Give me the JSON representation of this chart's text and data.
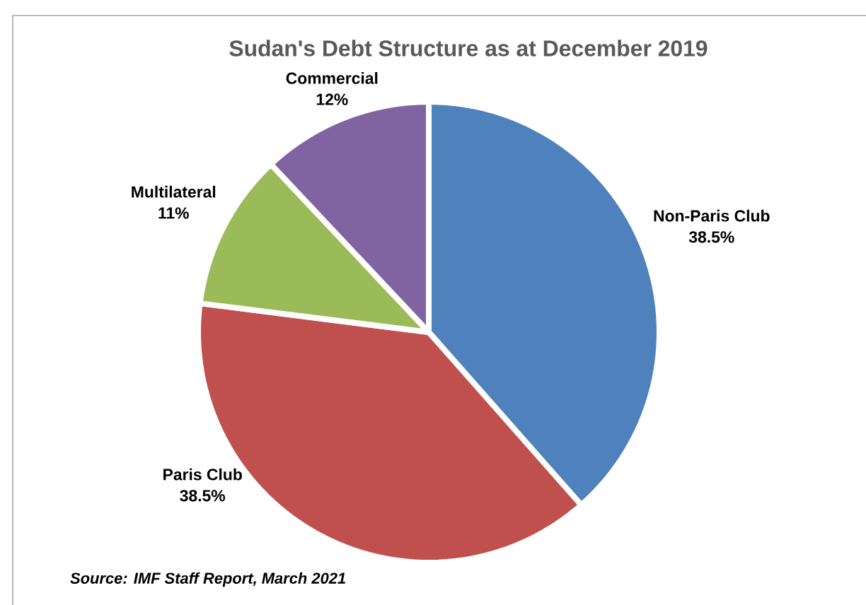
{
  "chart_data": {
    "type": "pie",
    "title": "Sudan's Debt Structure as at December 2019",
    "categories": [
      "Non-Paris Club",
      "Paris Club",
      "Multilateral",
      "Commercial"
    ],
    "values": [
      38.5,
      38.5,
      11,
      12
    ],
    "value_labels": [
      "38.5%",
      "38.5%",
      "11%",
      "12%"
    ],
    "colors": [
      "#4f81bd",
      "#c0504d",
      "#9bbb59",
      "#8064a2"
    ],
    "annotations": [
      "Source: IMF Staff Report, March 2021"
    ]
  }
}
